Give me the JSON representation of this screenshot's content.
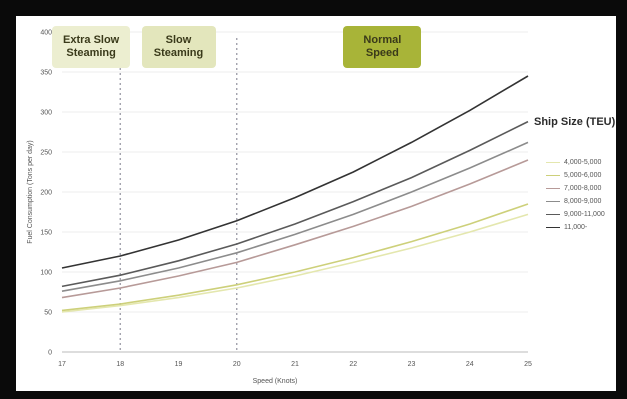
{
  "chart_data": {
    "type": "line",
    "xlabel": "Speed (Knots)",
    "ylabel": "Fuel Consumption (Tons per day)",
    "xlim": [
      17,
      25
    ],
    "ylim": [
      0,
      400
    ],
    "x_ticks": [
      "17",
      "18",
      "19",
      "20",
      "21",
      "22",
      "23",
      "24",
      "25"
    ],
    "y_ticks": [
      "0",
      "50",
      "100",
      "150",
      "200",
      "250",
      "300",
      "350",
      "400"
    ],
    "zones": [
      {
        "label": "Extra Slow\nSteaming",
        "x_start": 17,
        "x_end": 18,
        "color": "#eceed0"
      },
      {
        "label": "Slow\nSteaming",
        "x_start": 18,
        "x_end": 20,
        "color": "#e3e6bc"
      },
      {
        "label": "Normal\nSpeed",
        "x_start": 20,
        "x_end": 25,
        "color": "#a8b438"
      }
    ],
    "boundaries": [
      18,
      20
    ],
    "legend_title": "Ship Size (TEU)",
    "x": [
      17,
      18,
      19,
      20,
      21,
      22,
      23,
      24,
      25
    ],
    "series": [
      {
        "name": "4,000-5,000",
        "color": "#e4e7ae",
        "values": [
          50,
          58,
          68,
          80,
          95,
          112,
          130,
          150,
          172
        ]
      },
      {
        "name": "5,000-6,000",
        "color": "#cdd07a",
        "values": [
          52,
          60,
          71,
          84,
          100,
          118,
          138,
          160,
          185
        ]
      },
      {
        "name": "7,000-8,000",
        "color": "#b79a98",
        "values": [
          68,
          80,
          95,
          112,
          134,
          157,
          182,
          210,
          240
        ]
      },
      {
        "name": "8,000-9,000",
        "color": "#8c8c8c",
        "values": [
          76,
          89,
          105,
          124,
          147,
          172,
          200,
          230,
          262
        ]
      },
      {
        "name": "9,000-11,000",
        "color": "#5a5a5a",
        "values": [
          82,
          96,
          114,
          135,
          160,
          188,
          218,
          252,
          288
        ]
      },
      {
        "name": "11,000-",
        "color": "#333333",
        "values": [
          105,
          120,
          140,
          164,
          193,
          225,
          262,
          302,
          345
        ]
      }
    ]
  }
}
